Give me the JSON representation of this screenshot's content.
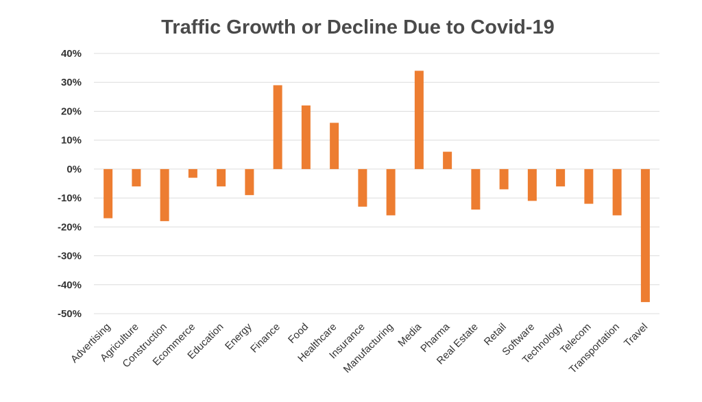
{
  "chart_data": {
    "type": "bar",
    "title": "Traffic Growth or Decline Due to Covid-19",
    "xlabel": "",
    "ylabel": "",
    "ylim": [
      -50,
      40
    ],
    "y_ticks": [
      40,
      30,
      20,
      10,
      0,
      -10,
      -20,
      -30,
      -40,
      -50
    ],
    "y_tick_labels": [
      "40%",
      "30%",
      "20%",
      "10%",
      "0%",
      "-10%",
      "-20%",
      "-30%",
      "-40%",
      "-50%"
    ],
    "grid": true,
    "legend": "none",
    "bar_color": "#ED7D31",
    "categories": [
      "Advertising",
      "Agriculture",
      "Construction",
      "Ecommerce",
      "Education",
      "Energy",
      "Finance",
      "Food",
      "Healthcare",
      "Insurance",
      "Manufacturing",
      "Media",
      "Pharma",
      "Real Estate",
      "Retail",
      "Software",
      "Technology",
      "Telecom",
      "Transportation",
      "Travel"
    ],
    "values": [
      -17,
      -6,
      -18,
      -3,
      -6,
      -9,
      29,
      22,
      16,
      -13,
      -16,
      34,
      6,
      -14,
      -7,
      -11,
      -6,
      -12,
      -16,
      -46
    ]
  }
}
